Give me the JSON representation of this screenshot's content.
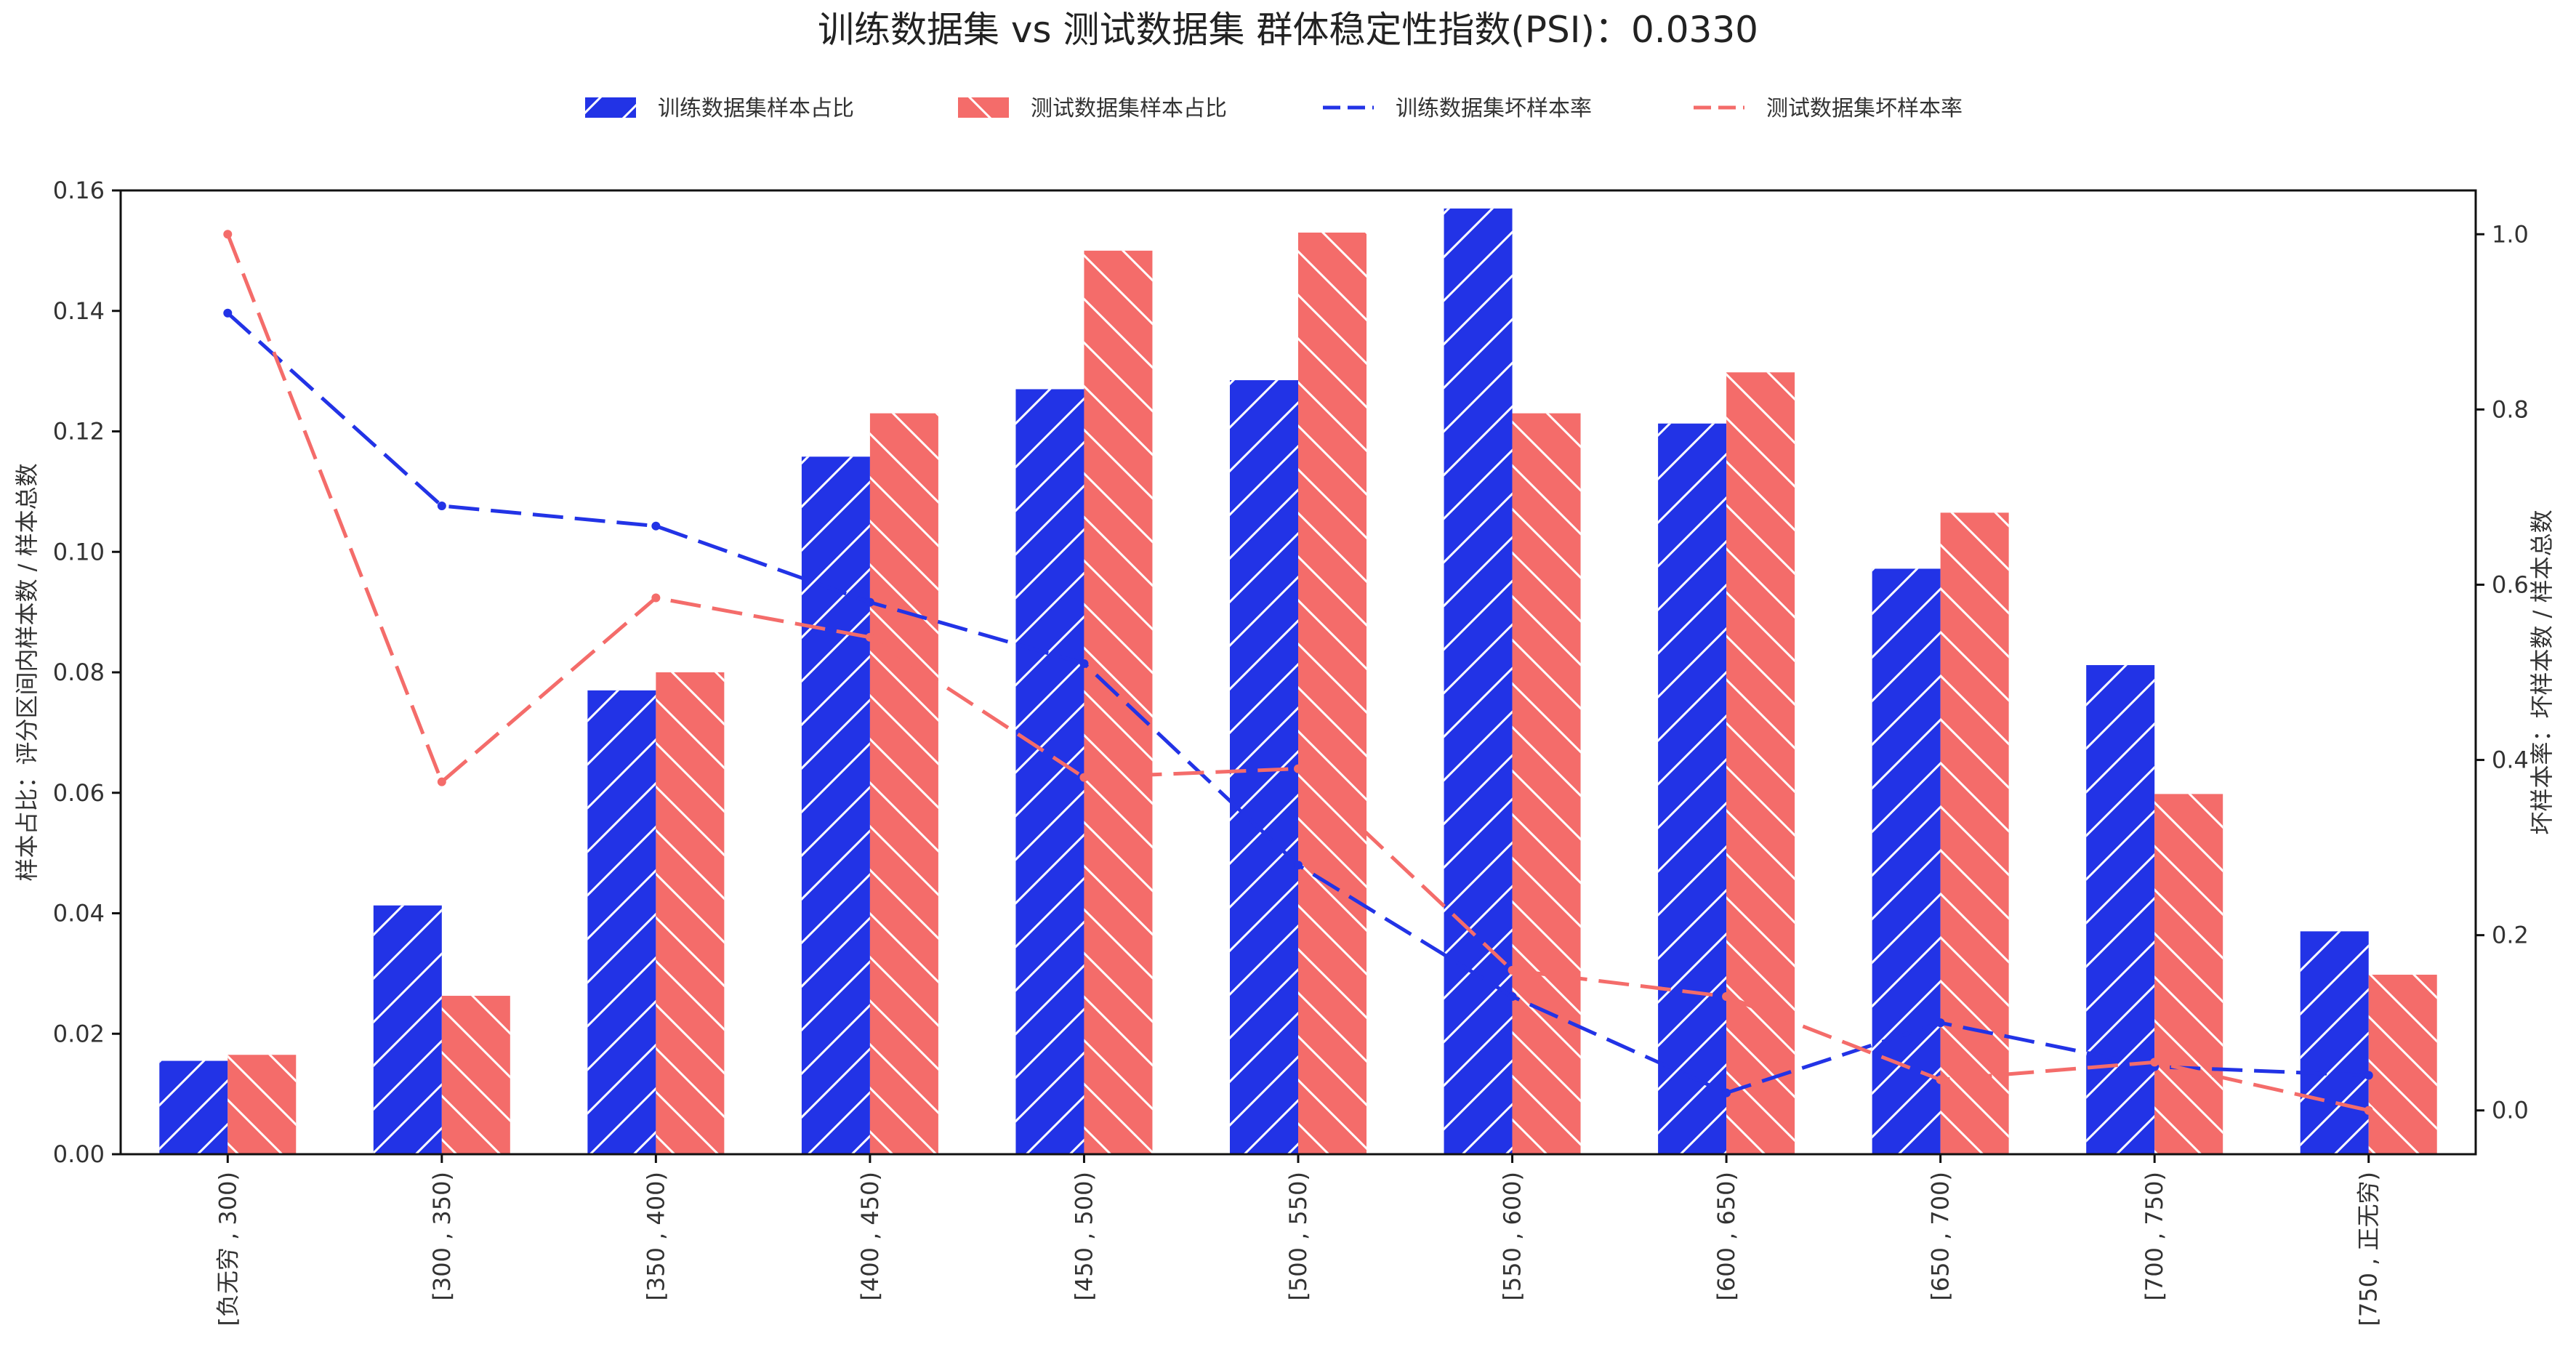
{
  "chart_data": {
    "type": "bar",
    "title": "训练数据集 vs 测试数据集 群体稳定性指数(PSI)：0.0330",
    "categories": [
      "[负无穷 , 300)",
      "[300 , 350)",
      "[350 , 400)",
      "[400 , 450)",
      "[450 , 500)",
      "[500 , 550)",
      "[550 , 600)",
      "[600 , 650)",
      "[650 , 700)",
      "[700 , 750)",
      "[750 , 正无穷)"
    ],
    "ylabel_left": "样本占比：评分区间内样本数 / 样本总数",
    "ylabel_right": "坏样本率：坏样本数 / 样本总数",
    "ylim_left": [
      0,
      0.16
    ],
    "ylim_right": [
      -0.05,
      1.05
    ],
    "yticks_left": [
      "0.00",
      "0.02",
      "0.04",
      "0.06",
      "0.08",
      "0.10",
      "0.12",
      "0.14",
      "0.16"
    ],
    "yticks_right": [
      "0.0",
      "0.2",
      "0.4",
      "0.6",
      "0.8",
      "1.0"
    ],
    "legend_position": "top-center",
    "series": [
      {
        "name": "训练数据集样本占比",
        "kind": "bar",
        "axis": "left",
        "color": "#2233e6",
        "values": [
          0.0155,
          0.0413,
          0.077,
          0.1158,
          0.127,
          0.1285,
          0.157,
          0.1213,
          0.0972,
          0.0812,
          0.037
        ]
      },
      {
        "name": "测试数据集样本占比",
        "kind": "bar",
        "axis": "left",
        "color": "#f46c6a",
        "values": [
          0.0165,
          0.0263,
          0.08,
          0.123,
          0.15,
          0.153,
          0.123,
          0.1298,
          0.1065,
          0.0598,
          0.0298
        ]
      },
      {
        "name": "训练数据集坏样本率",
        "kind": "line",
        "axis": "right",
        "color": "#2233e6",
        "values": [
          0.91,
          0.69,
          0.667,
          0.58,
          0.51,
          0.28,
          0.13,
          0.02,
          0.1,
          0.05,
          0.04
        ]
      },
      {
        "name": "测试数据集坏样本率",
        "kind": "line",
        "axis": "right",
        "color": "#f46c6a",
        "values": [
          1.0,
          0.375,
          0.585,
          0.54,
          0.38,
          0.39,
          0.16,
          0.13,
          0.035,
          0.055,
          0.0
        ]
      }
    ]
  }
}
